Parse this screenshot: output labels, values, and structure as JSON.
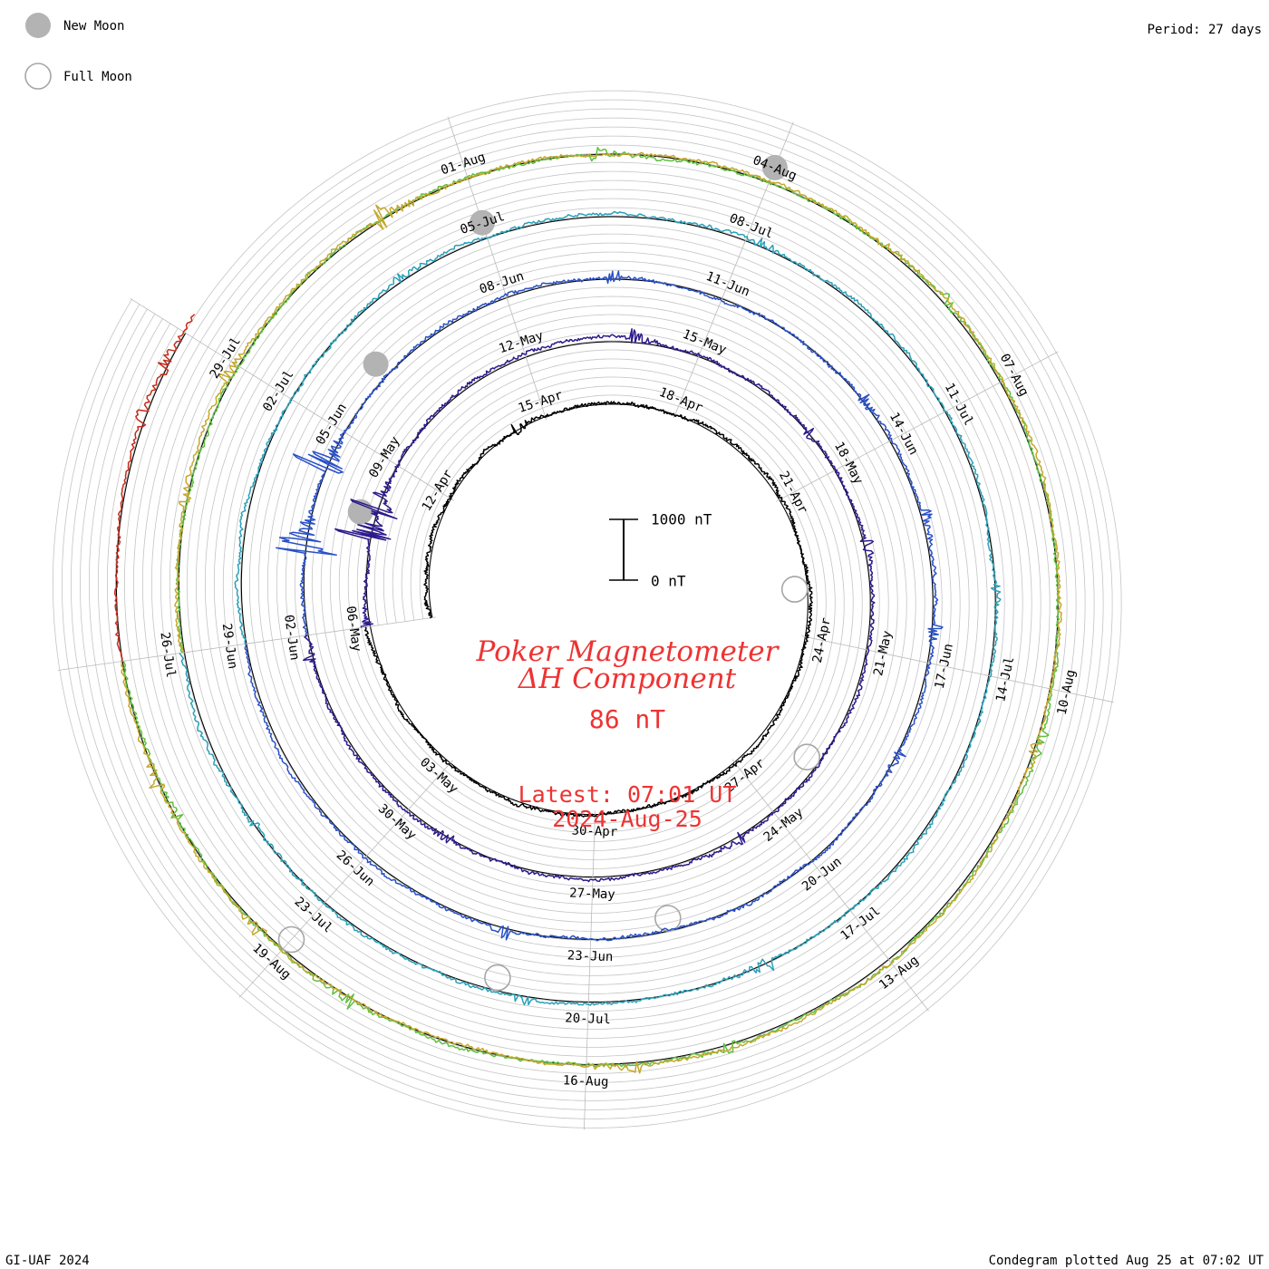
{
  "legend": {
    "new_moon_label": "New Moon",
    "full_moon_label": "Full Moon"
  },
  "period_label": "Period: 27 days",
  "footer": {
    "credit": "GI-UAF 2024",
    "plotted": "Condegram plotted Aug 25 at 07:02 UT"
  },
  "center": {
    "title_line1": "Poker Magnetometer",
    "title_line2": "ΔH Component",
    "value": "86 nT",
    "latest_time": "Latest: 07:01 UT",
    "latest_date": "2024-Aug-25"
  },
  "colors": {
    "title": "#ee3333",
    "moon_fill": "#b3b3b3",
    "grid": "#bdbdbd",
    "axis": "#000000"
  },
  "chart_data": {
    "type": "line",
    "period_days": 27,
    "scale_bar": {
      "low_label": "0 nT",
      "high_label": "1000 nT",
      "low": 0,
      "high": 1000,
      "unit": "nT"
    },
    "date_labels": [
      "12-Apr",
      "15-Apr",
      "18-Apr",
      "21-Apr",
      "24-Apr",
      "27-Apr",
      "30-Apr",
      "03-May",
      "06-May",
      "09-May",
      "12-May",
      "15-May",
      "18-May",
      "21-May",
      "24-May",
      "27-May",
      "30-May",
      "02-Jun",
      "05-Jun",
      "08-Jun",
      "11-Jun",
      "14-Jun",
      "17-Jun",
      "20-Jun",
      "23-Jun",
      "26-Jun",
      "29-Jun",
      "02-Jul",
      "05-Jul",
      "08-Jul",
      "11-Jul",
      "14-Jul",
      "17-Jul",
      "20-Jul",
      "23-Jul",
      "26-Jul",
      "29-Jul",
      "01-Aug",
      "04-Aug",
      "07-Aug",
      "10-Aug",
      "13-Aug",
      "16-Aug",
      "19-Aug"
    ],
    "series": [
      {
        "start": "2024-04-09",
        "days": 27,
        "color": "#000000",
        "disturbances": [
          [
            5.2,
            220
          ]
        ]
      },
      {
        "start": "2024-05-06",
        "days": 27,
        "color": "#2c1a8c",
        "disturbances": [
          [
            0.0,
            150
          ],
          [
            1.6,
            900
          ],
          [
            2.1,
            700
          ],
          [
            7.8,
            200
          ],
          [
            11.2,
            180
          ],
          [
            13.2,
            220
          ],
          [
            18.6,
            190
          ],
          [
            23.2,
            160
          ],
          [
            26.6,
            200
          ]
        ]
      },
      {
        "start": "2024-06-02",
        "days": 27,
        "color": "#2950c8",
        "disturbances": [
          [
            1.2,
            1000
          ],
          [
            2.4,
            700
          ],
          [
            7.4,
            180
          ],
          [
            11.3,
            190
          ],
          [
            13.0,
            170
          ],
          [
            14.5,
            160
          ],
          [
            16.2,
            150
          ],
          [
            22.0,
            170
          ]
        ]
      },
      {
        "start": "2024-06-29",
        "days": 27,
        "color": "#2aa0b8",
        "disturbances": [
          [
            4.8,
            160
          ],
          [
            9.1,
            180
          ],
          [
            14.0,
            150
          ],
          [
            19.0,
            200
          ],
          [
            21.6,
            170
          ],
          [
            25.0,
            160
          ]
        ]
      },
      {
        "start": "2024-07-26",
        "days": 27,
        "color": "#5fbf3f",
        "disturbances": [
          [
            7.2,
            180
          ],
          [
            11.0,
            160
          ],
          [
            15.4,
            190
          ],
          [
            19.6,
            170
          ],
          [
            23.2,
            200
          ],
          [
            25.5,
            160
          ]
        ]
      },
      {
        "start": "2024-07-26",
        "days": 27,
        "color": "#c5a72c",
        "disturbances": [
          [
            1.5,
            150
          ],
          [
            2.8,
            170
          ],
          [
            5.0,
            400
          ],
          [
            10.2,
            150
          ],
          [
            15.5,
            160
          ],
          [
            20.5,
            180
          ],
          [
            24.2,
            170
          ],
          [
            25.8,
            210
          ]
        ]
      },
      {
        "start": "2024-08-22",
        "days": 3.2,
        "color": "#c62c1a",
        "disturbances": [
          [
            2.1,
            180
          ],
          [
            2.6,
            200
          ]
        ]
      }
    ],
    "new_moon_days": [
      "2024-05-08",
      "2024-06-06",
      "2024-07-05",
      "2024-08-04"
    ],
    "full_moon_days": [
      "2024-04-23",
      "2024-05-23",
      "2024-06-22",
      "2024-07-21",
      "2024-08-19"
    ]
  }
}
